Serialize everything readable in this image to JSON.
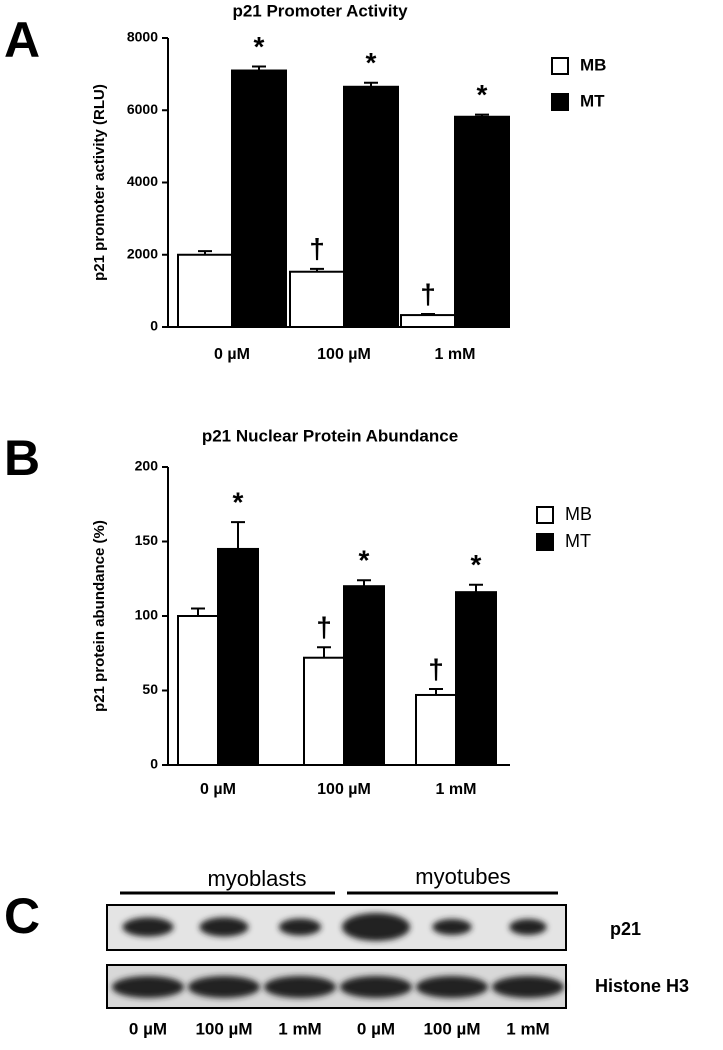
{
  "panels": [
    "A",
    "B",
    "C"
  ],
  "chart_data": [
    {
      "type": "bar",
      "title": "p21 Promoter Activity",
      "y_label": "p21 promoter activity (RLU)",
      "categories": [
        "0 µM",
        "100 µM",
        "1 mM"
      ],
      "series": [
        {
          "name": "MB",
          "color": "#ffffff",
          "values": [
            2000,
            1530,
            330
          ],
          "errors": [
            100,
            80,
            30
          ],
          "annotations": [
            null,
            "†",
            "†"
          ]
        },
        {
          "name": "MT",
          "color": "#000000",
          "values": [
            7100,
            6650,
            5820
          ],
          "errors": [
            110,
            110,
            60
          ],
          "annotations": [
            "*",
            "*",
            "*"
          ]
        }
      ],
      "ylim": [
        0,
        8000
      ],
      "yticks": [
        0,
        2000,
        4000,
        6000,
        8000
      ],
      "grid": false,
      "legend_position": "upper right"
    },
    {
      "type": "bar",
      "title": "p21 Nuclear Protein Abundance",
      "y_label": "p21 protein abundance  (%)",
      "categories": [
        "0 µM",
        "100 µM",
        "1 mM"
      ],
      "series": [
        {
          "name": "MB",
          "color": "#ffffff",
          "values": [
            100,
            72,
            47
          ],
          "errors": [
            5,
            7,
            4
          ],
          "annotations": [
            null,
            "†",
            "†"
          ]
        },
        {
          "name": "MT",
          "color": "#000000",
          "values": [
            145,
            120,
            116
          ],
          "errors": [
            18,
            4,
            5
          ],
          "annotations": [
            "*",
            "*",
            "*"
          ]
        }
      ],
      "ylim": [
        0,
        200
      ],
      "yticks": [
        0,
        50,
        100,
        150,
        200
      ],
      "grid": false,
      "legend_position": "upper right"
    }
  ],
  "blot": {
    "groups": [
      "myoblasts",
      "myotubes"
    ],
    "rows": [
      "p21",
      "Histone H3"
    ],
    "lanes": [
      "0 µM",
      "100 µM",
      "1 mM",
      "0 µM",
      "100 µM",
      "1 mM"
    ]
  }
}
